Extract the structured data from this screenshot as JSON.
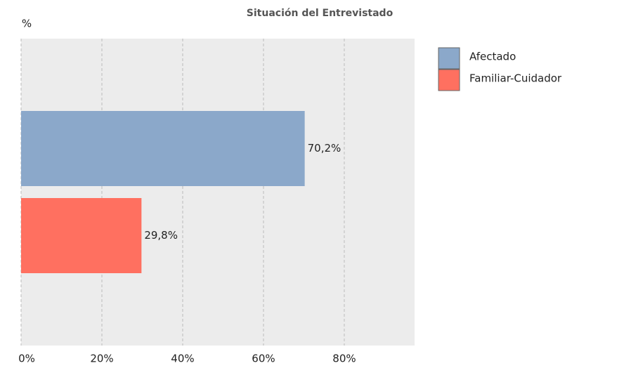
{
  "chart_data": {
    "type": "bar",
    "orientation": "horizontal",
    "title": "Situación del Entrevistado",
    "axis_label": "%",
    "categories": [
      null
    ],
    "series": [
      {
        "name": "Afectado",
        "color": "#8ba8ca",
        "values": [
          70.2
        ],
        "value_labels": [
          "70,2%"
        ]
      },
      {
        "name": "Familiar-Cuidador",
        "color": "#ff7060",
        "values": [
          29.8
        ],
        "value_labels": [
          "29,8%"
        ]
      }
    ],
    "xlim": [
      0,
      97.4
    ],
    "xticks": [
      {
        "value": 0,
        "label": "0%"
      },
      {
        "value": 20,
        "label": "20%"
      },
      {
        "value": 40,
        "label": "40%"
      },
      {
        "value": 60,
        "label": "60%"
      },
      {
        "value": 80,
        "label": "80%"
      }
    ],
    "grid": true,
    "legend": "right"
  }
}
